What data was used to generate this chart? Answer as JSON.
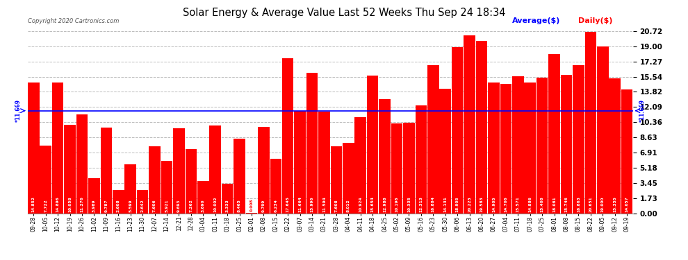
{
  "title": "Solar Energy & Average Value Last 52 Weeks Thu Sep 24 18:34",
  "copyright": "Copyright 2020 Cartronics.com",
  "bar_color": "#ff0000",
  "background_color": "#ffffff",
  "grid_color": "#bbbbbb",
  "average_line_value": 11.669,
  "average_label": "*11.669",
  "legend_average_color": "#0000ff",
  "legend_daily_color": "#ff0000",
  "ylim": [
    0,
    20.72
  ],
  "yticks": [
    0.0,
    1.73,
    3.45,
    5.18,
    6.91,
    8.63,
    10.36,
    12.09,
    13.82,
    15.54,
    17.27,
    19.0,
    20.72
  ],
  "categories": [
    "09-28",
    "10-05",
    "10-12",
    "10-19",
    "10-26",
    "11-02",
    "11-09",
    "11-16",
    "11-23",
    "11-30",
    "12-07",
    "12-14",
    "12-21",
    "12-28",
    "01-04",
    "01-11",
    "01-18",
    "01-25",
    "02-01",
    "02-08",
    "02-15",
    "02-22",
    "03-07",
    "03-14",
    "03-21",
    "03-28",
    "04-04",
    "04-11",
    "04-18",
    "04-25",
    "05-02",
    "05-09",
    "05-16",
    "05-23",
    "05-30",
    "06-06",
    "06-13",
    "06-20",
    "06-27",
    "07-04",
    "07-11",
    "07-18",
    "07-25",
    "08-01",
    "08-08",
    "08-15",
    "08-22",
    "09-05",
    "09-12",
    "09-19"
  ],
  "values": [
    14.852,
    7.722,
    14.896,
    10.058,
    11.276,
    3.989,
    9.787,
    2.608,
    5.599,
    2.642,
    7.606,
    5.921,
    9.693,
    7.262,
    3.69,
    10.002,
    3.333,
    8.465,
    0.008,
    9.799,
    6.234,
    17.645,
    11.664,
    15.996,
    11.594,
    7.608,
    8.012,
    10.924,
    15.654,
    12.988,
    10.196,
    10.335,
    12.313,
    16.884,
    14.131,
    18.905,
    20.223,
    19.583,
    14.905,
    14.706,
    15.571,
    14.886,
    15.408,
    18.081,
    15.746,
    16.863,
    20.651,
    19.0,
    15.355,
    14.057
  ],
  "bar_labels": [
    "14.852",
    "7.722",
    "14.896",
    "10.058",
    "11.276",
    "3.989",
    "9.787",
    "2.608",
    "5.599",
    "2.642",
    "7.606",
    "5.921",
    "9.693",
    "7.262",
    "3.690",
    "10.002",
    "3.333",
    "8.465",
    "0.008",
    "9.799",
    "6.234",
    "17.645",
    "11.664",
    "15.996",
    "11.594",
    "7.608",
    "8.012",
    "10.924",
    "15.654",
    "12.988",
    "10.196",
    "10.335",
    "12.313",
    "16.884",
    "14.131",
    "18.905",
    "20.223",
    "19.583",
    "14.905",
    "14.706",
    "15.571",
    "14.886",
    "15.408",
    "18.081",
    "15.746",
    "16.863",
    "20.651",
    "19.000",
    "15.355",
    "14.057"
  ]
}
